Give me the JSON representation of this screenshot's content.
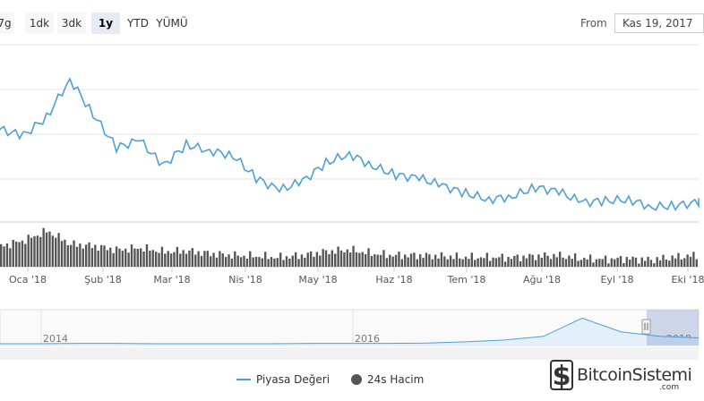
{
  "toolbar": {
    "ranges": [
      {
        "label": "7g",
        "active": false
      },
      {
        "label": "1dk",
        "active": false
      },
      {
        "label": "3dk",
        "active": false
      },
      {
        "label": "1y",
        "active": true
      },
      {
        "label": "YTD",
        "active": false
      },
      {
        "label": "YÜMÜ",
        "active": false
      }
    ],
    "from_label": "From",
    "from_value": "Kas 19, 2017"
  },
  "chart_data": {
    "type": "line",
    "title": "",
    "xlabel": "",
    "ylabel": "",
    "grid": true,
    "legend_position": "bottom",
    "x_ticks": [
      "Oca '18",
      "Şub '18",
      "Mar '18",
      "Nis '18",
      "May '18",
      "Haz '18",
      "Tem '18",
      "Ağu '18",
      "Eyl '18",
      "Eki '18"
    ],
    "series": [
      {
        "name": "Piyasa Değeri",
        "color": "#4d9fd6",
        "x": [
          "Ara '17 mid",
          "Ara '17 late",
          "Oca '18 early",
          "Oca '18 mid",
          "Oca '18 late",
          "Şub '18 early",
          "Şub '18 mid",
          "Şub '18 late",
          "Mar '18 early",
          "Mar '18 mid",
          "Mar '18 late",
          "Nis '18 early",
          "Nis '18 mid",
          "Nis '18 late",
          "May '18 early",
          "May '18 mid",
          "May '18 late",
          "Haz '18 early",
          "Haz '18 mid",
          "Haz '18 late",
          "Tem '18 early",
          "Tem '18 mid",
          "Tem '18 late",
          "Ağu '18 early",
          "Ağu '18 mid",
          "Ağu '18 late",
          "Eyl '18 early",
          "Eyl '18 mid",
          "Eyl '18 late",
          "Eki '18 early",
          "Eki '18 mid"
        ],
        "values": [
          0.62,
          0.58,
          0.7,
          0.95,
          0.72,
          0.5,
          0.55,
          0.38,
          0.52,
          0.48,
          0.45,
          0.3,
          0.22,
          0.28,
          0.4,
          0.46,
          0.38,
          0.32,
          0.3,
          0.25,
          0.2,
          0.16,
          0.18,
          0.24,
          0.21,
          0.14,
          0.15,
          0.16,
          0.11,
          0.12,
          0.14
        ]
      },
      {
        "name": "24s Hacim",
        "color": "#555555",
        "values": [
          0.55,
          0.7,
          0.95,
          0.6,
          0.55,
          0.45,
          0.5,
          0.4,
          0.42,
          0.35,
          0.3,
          0.28,
          0.25,
          0.3,
          0.4,
          0.45,
          0.35,
          0.3,
          0.3,
          0.28,
          0.25,
          0.25,
          0.24,
          0.28,
          0.3,
          0.22,
          0.2,
          0.22,
          0.18,
          0.25,
          0.3
        ]
      }
    ],
    "navigator": {
      "x_ticks": [
        "2014",
        "2016",
        "2018"
      ],
      "values": [
        0.06,
        0.06,
        0.07,
        0.07,
        0.06,
        0.06,
        0.06,
        0.06,
        0.07,
        0.07,
        0.07,
        0.08,
        0.12,
        0.18,
        0.3,
        0.9,
        0.45,
        0.3,
        0.25
      ]
    }
  },
  "legend": {
    "market_cap": "Piyasa Değeri",
    "volume": "24s Hacim"
  },
  "logo": {
    "mark": "$",
    "name": "BitcoinSistemi",
    "tld": ".com"
  }
}
